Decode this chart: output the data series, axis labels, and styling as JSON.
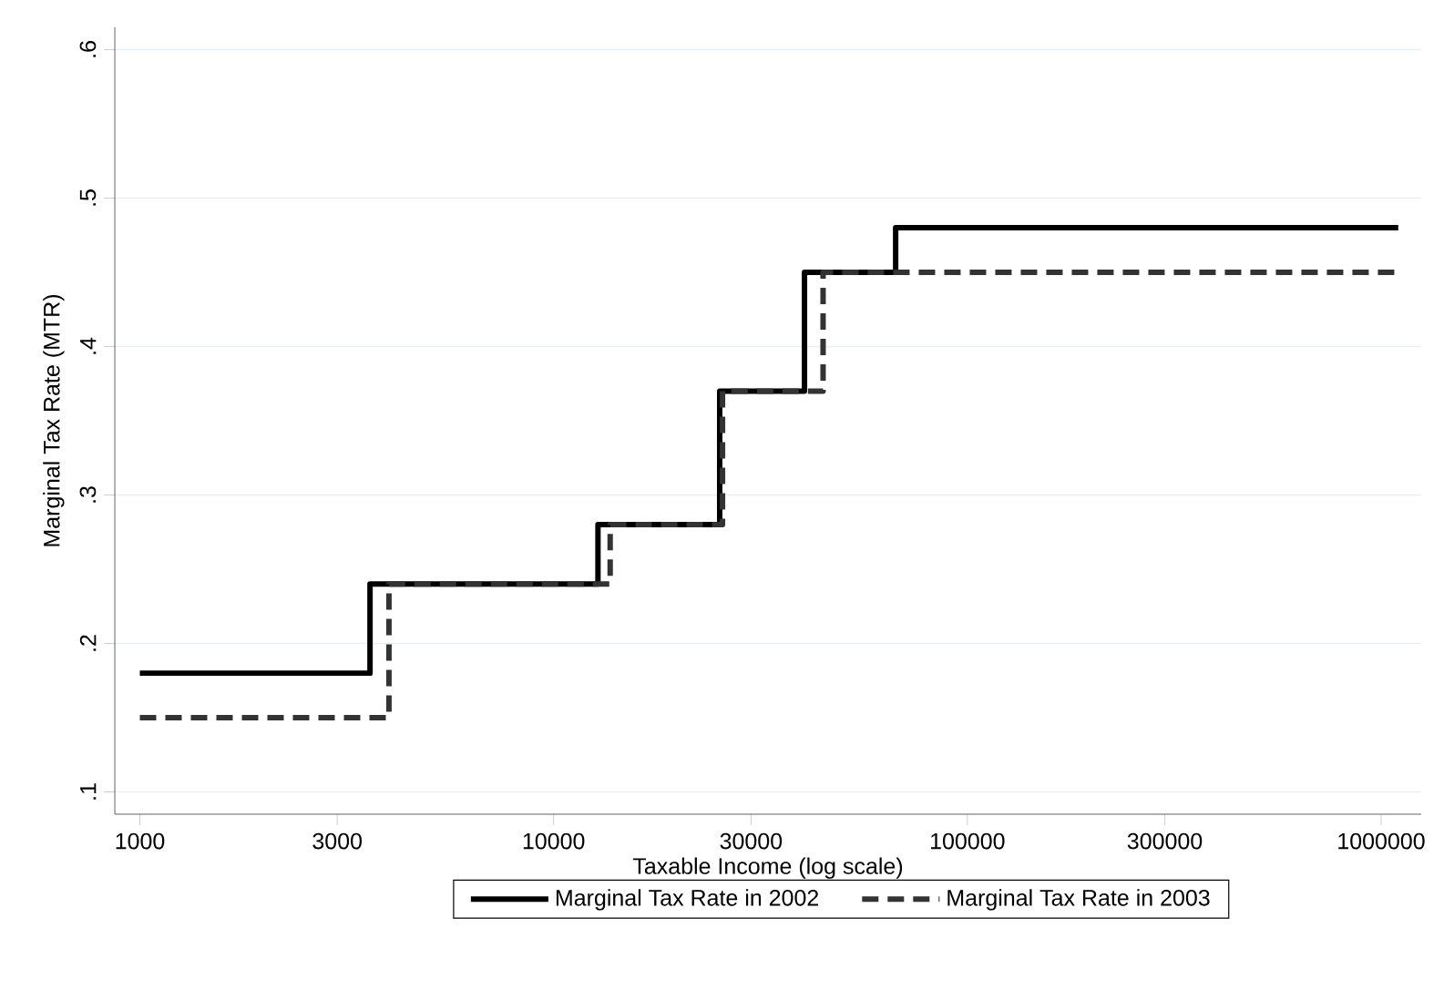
{
  "chart_data": {
    "type": "step",
    "xlabel": "Taxable Income (log scale)",
    "ylabel": "Marginal Tax Rate (MTR)",
    "log": "x",
    "grid": "y",
    "legend": "bottom",
    "marker": "none",
    "xlim": [
      870,
      1250000
    ],
    "xticks": [
      1000,
      3000,
      10000,
      30000,
      100000,
      300000,
      1000000
    ],
    "ylim": [
      0.085,
      0.615
    ],
    "yticks": [
      {
        "value": 0.1,
        "label": ".1"
      },
      {
        "value": 0.2,
        "label": ".2"
      },
      {
        "value": 0.3,
        "label": ".3"
      },
      {
        "value": 0.4,
        "label": ".4"
      },
      {
        "value": 0.5,
        "label": ".5"
      },
      {
        "value": 0.6,
        "label": ".6"
      }
    ],
    "series": [
      {
        "name": "Marginal Tax Rate in 2002",
        "color": "#000000",
        "line_style": "solid",
        "x": [
          1000,
          3600,
          12800,
          25200,
          40400,
          67100,
          1100000
        ],
        "values": [
          0.18,
          0.24,
          0.28,
          0.37,
          0.45,
          0.48,
          0.48
        ]
      },
      {
        "name": "Marginal Tax Rate in 2003",
        "color": "#333333",
        "line_style": "dashed",
        "x": [
          1000,
          4000,
          13700,
          25600,
          44800,
          1100000
        ],
        "values": [
          0.15,
          0.24,
          0.28,
          0.37,
          0.45,
          0.45
        ]
      }
    ]
  }
}
